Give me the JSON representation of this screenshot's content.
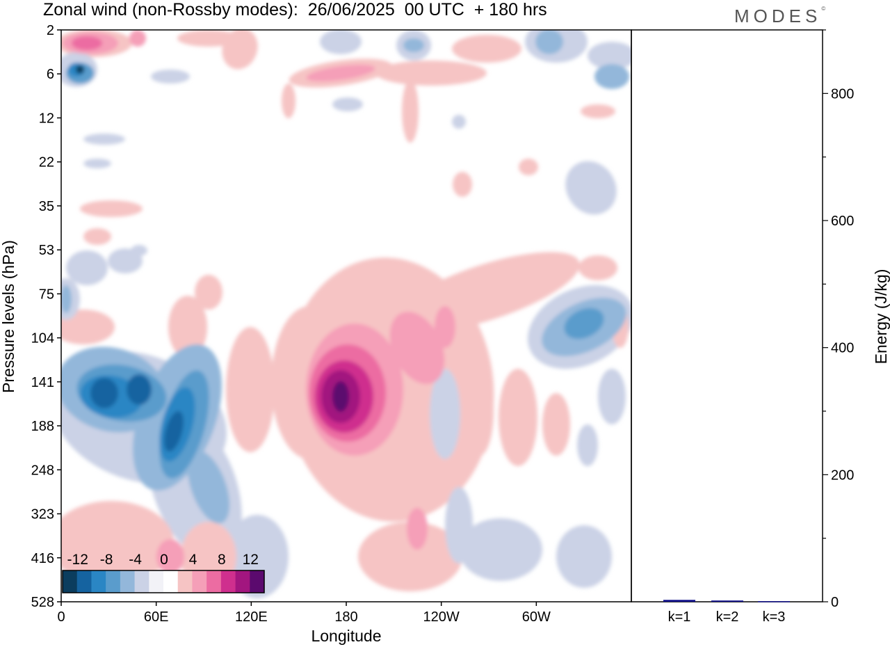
{
  "header": {
    "title": "Zonal wind (non-Rossby modes):  26/06/2025  00 UTC  + 180 hrs",
    "logo": "MODES"
  },
  "chart_data": [
    {
      "type": "heatmap",
      "title": "Zonal wind (non-Rossby modes):  26/06/2025  00 UTC  + 180 hrs",
      "xlabel": "Longitude",
      "ylabel": "Pressure levels (hPa)",
      "x_ticks": [
        "0",
        "60E",
        "120E",
        "180",
        "120W",
        "60W"
      ],
      "y_ticks": [
        "2",
        "6",
        "12",
        "22",
        "35",
        "53",
        "75",
        "104",
        "141",
        "188",
        "248",
        "323",
        "416",
        "528"
      ],
      "colorbar": {
        "labels": [
          "-12",
          "-8",
          "-4",
          "0",
          "4",
          "8",
          "12"
        ],
        "levels": [
          -14,
          -12,
          -10,
          -8,
          -6,
          -4,
          -2,
          -1,
          1,
          2,
          4,
          6,
          8,
          10,
          12
        ],
        "colors": [
          "#0b3d5e",
          "#1563a0",
          "#2a86c4",
          "#5a9ccc",
          "#93b7da",
          "#cbd2e6",
          "#f2f2f7",
          "#ffffff",
          "#f6c4c4",
          "#f59fb8",
          "#ec6ca2",
          "#cf2f8e",
          "#a2167f",
          "#5b0a6e"
        ]
      },
      "features": [
        {
          "kind": "min",
          "lon": 25,
          "level": "141",
          "value": -11
        },
        {
          "kind": "min",
          "lon": 45,
          "level": "141",
          "value": -11
        },
        {
          "kind": "min",
          "lon": 78,
          "level": "188",
          "value": -9
        },
        {
          "kind": "min",
          "lon": 12,
          "level": "6",
          "value": -10
        },
        {
          "kind": "max",
          "lon": 178,
          "level": "141",
          "value": 14
        },
        {
          "kind": "min",
          "lon": 320,
          "level": "104",
          "value": -7
        }
      ]
    },
    {
      "type": "bar",
      "ylabel": "Energy (J/kg)",
      "categories": [
        "k=1",
        "k=2",
        "k=3"
      ],
      "values": [
        3,
        2,
        1
      ],
      "ylim": [
        0,
        900
      ],
      "y_ticks": [
        "0",
        "200",
        "400",
        "600",
        "800"
      ],
      "bar_color": "#10108a"
    }
  ]
}
